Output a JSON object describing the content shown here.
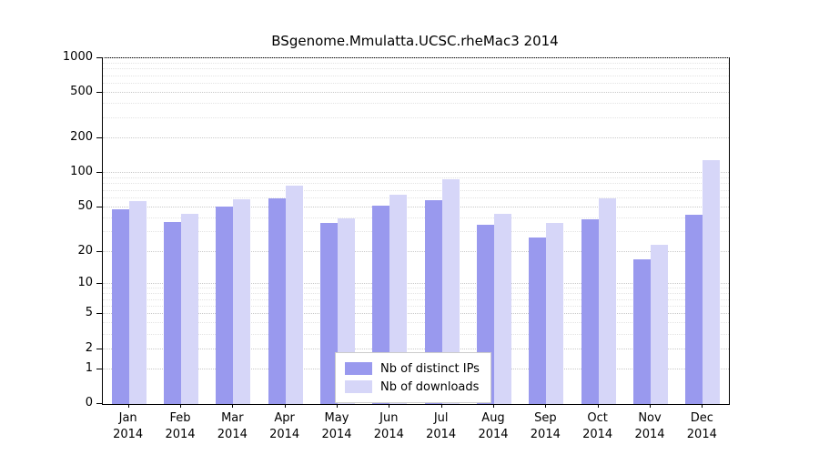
{
  "title": "BSgenome.Mmulatta.UCSC.rheMac3 2014",
  "colors": {
    "distinct_ips_bar": "#9999ee",
    "downloads_bar": "#d6d6f8",
    "axis": "#000000",
    "grid_major": "#c9c9c9",
    "grid_minor": "#e3e3e3"
  },
  "chart_data": {
    "type": "bar",
    "title": "BSgenome.Mmulatta.UCSC.rheMac3 2014",
    "categories": [
      "Jan",
      "Feb",
      "Mar",
      "Apr",
      "May",
      "Jun",
      "Jul",
      "Aug",
      "Sep",
      "Oct",
      "Nov",
      "Dec"
    ],
    "year": "2014",
    "series": [
      {
        "name": "Nb of distinct IPs",
        "color": "#9999ee",
        "values": [
          48,
          37,
          51,
          60,
          36,
          52,
          58,
          35,
          27,
          39,
          17,
          43
        ]
      },
      {
        "name": "Nb of downloads",
        "color": "#d6d6f8",
        "values": [
          57,
          44,
          59,
          78,
          40,
          65,
          88,
          44,
          36,
          60,
          23,
          130
        ]
      }
    ],
    "xlabel": "",
    "ylabel": "",
    "yscale": "log1p",
    "ylim": [
      0,
      1000
    ],
    "yticks": [
      0,
      1,
      2,
      5,
      10,
      20,
      50,
      100,
      200,
      500,
      1000
    ],
    "grid_values_minor": [
      1,
      2,
      3,
      4,
      5,
      6,
      7,
      8,
      9,
      10,
      20,
      30,
      40,
      50,
      60,
      70,
      80,
      90,
      100,
      200,
      300,
      400,
      500,
      600,
      700,
      800,
      900,
      1000
    ],
    "legend_position": "bottom-center-inside"
  },
  "legend": {
    "items": [
      {
        "label": "Nb of distinct IPs",
        "color": "#9999ee"
      },
      {
        "label": "Nb of downloads",
        "color": "#d6d6f8"
      }
    ]
  }
}
